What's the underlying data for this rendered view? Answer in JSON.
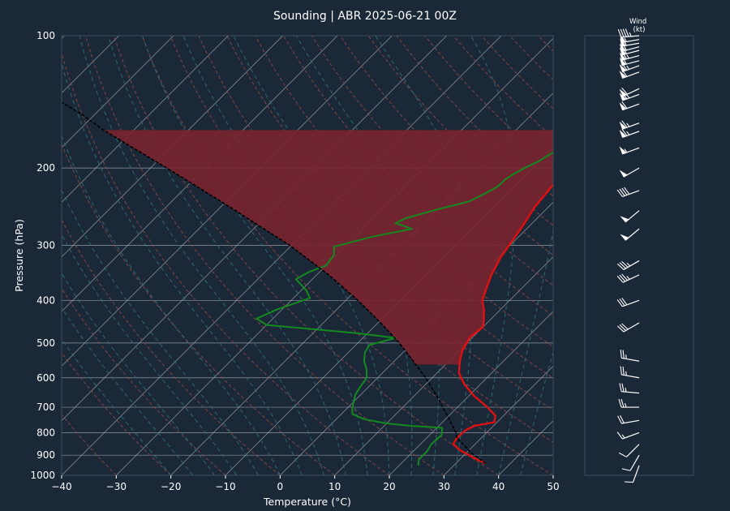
{
  "chart_data": [
    {
      "type": "line",
      "subtype": "skew-t log-p",
      "title": "Sounding | ABR 2025-06-21 00Z",
      "xlabel": "Temperature (°C)",
      "ylabel": "Pressure (hPa)",
      "xlim": [
        -40,
        50
      ],
      "ylim": [
        1000,
        100
      ],
      "yscale": "log",
      "x_ticks": [
        -40,
        -30,
        -20,
        -10,
        0,
        10,
        20,
        30,
        40,
        50
      ],
      "y_ticks": [
        100,
        200,
        300,
        400,
        500,
        600,
        700,
        800,
        900,
        1000
      ],
      "grid": true,
      "colors": {
        "temperature": "#e01010",
        "dewpoint": "#138a1e",
        "parcel": "#000000",
        "cape_fill": "#7a2430",
        "isotherm": "#b9bec6",
        "dry_adiabat": "#8a4a44",
        "moist_adiabat": "#2f6b73"
      },
      "series": [
        {
          "key": "temperature",
          "points": [
            [
              35.5,
              940
            ],
            [
              32,
              910
            ],
            [
              28.5,
              878
            ],
            [
              26,
              850
            ],
            [
              25.5,
              822
            ],
            [
              25.7,
              790
            ],
            [
              26.5,
              772
            ],
            [
              29.5,
              757
            ],
            [
              28.5,
              732
            ],
            [
              25.5,
              700
            ],
            [
              21,
              660
            ],
            [
              17,
              620
            ],
            [
              14,
              585
            ],
            [
              12,
              550
            ],
            [
              10.5,
              520
            ],
            [
              9.5,
              485
            ],
            [
              10,
              460
            ],
            [
              9,
              445
            ],
            [
              7,
              420
            ],
            [
              5,
              400
            ],
            [
              3.5,
              375
            ],
            [
              2,
              350
            ],
            [
              0.5,
              320
            ],
            [
              -0.5,
              290
            ],
            [
              -1.5,
              265
            ],
            [
              -2.5,
              245
            ],
            [
              -3,
              225
            ],
            [
              -3.5,
              210
            ],
            [
              -3.5,
              197
            ],
            [
              -2.5,
              192
            ],
            [
              -1,
              188
            ],
            [
              0,
              180
            ],
            [
              1,
              172
            ],
            [
              2,
              167
            ],
            [
              3,
              161
            ],
            [
              3.5,
              157
            ],
            [
              4,
              150
            ],
            [
              3.5,
              140
            ],
            [
              2.5,
              128
            ],
            [
              1.5,
              117
            ],
            [
              1,
              108
            ],
            [
              2.5,
              100
            ]
          ]
        },
        {
          "key": "dewpoint",
          "points": [
            [
              23.5,
              950
            ],
            [
              22.5,
              920
            ],
            [
              22.5,
              880
            ],
            [
              22,
              850
            ],
            [
              22.2,
              810
            ],
            [
              21,
              780
            ],
            [
              15,
              772
            ],
            [
              10,
              762
            ],
            [
              5,
              745
            ],
            [
              2,
              725
            ],
            [
              1,
              705
            ],
            [
              0,
              680
            ],
            [
              -1,
              655
            ],
            [
              -1.5,
              630
            ],
            [
              -2,
              600
            ],
            [
              -3.5,
              575
            ],
            [
              -5.5,
              550
            ],
            [
              -7,
              525
            ],
            [
              -7.5,
              505
            ],
            [
              -4,
              487
            ],
            [
              -12,
              475
            ],
            [
              -30,
              455
            ],
            [
              -33,
              440
            ],
            [
              -31,
              420
            ],
            [
              -27,
              395
            ],
            [
              -29,
              380
            ],
            [
              -33,
              358
            ],
            [
              -32,
              345
            ],
            [
              -30,
              333
            ],
            [
              -30.5,
              315
            ],
            [
              -32,
              302
            ],
            [
              -27,
              287
            ],
            [
              -21,
              275
            ],
            [
              -25,
              267
            ],
            [
              -24,
              260
            ],
            [
              -20.5,
              250
            ],
            [
              -15.5,
              238
            ],
            [
              -14,
              228
            ],
            [
              -13,
              220
            ],
            [
              -13,
              213
            ],
            [
              -12.5,
              207
            ],
            [
              -11.5,
              200
            ],
            [
              -10,
              192
            ],
            [
              -9,
              183
            ],
            [
              -8.5,
              175
            ],
            [
              -7.5,
              167
            ],
            [
              -7,
              160
            ],
            [
              -6,
              153
            ],
            [
              -7,
              145
            ],
            [
              -7.5,
              138
            ],
            [
              -9.5,
              127
            ],
            [
              -12,
              118
            ],
            [
              -13.5,
              110
            ],
            [
              -12,
              104
            ],
            [
              -10.5,
              100
            ]
          ]
        },
        {
          "key": "parcel",
          "points": [
            [
              35.5,
              940
            ],
            [
              31,
              890
            ],
            [
              27,
              840
            ],
            [
              25.5,
              822
            ],
            [
              24.4,
              800
            ],
            [
              21.0,
              750
            ],
            [
              17.3,
              700
            ],
            [
              13.3,
              650
            ],
            [
              8.8,
              600
            ],
            [
              3.5,
              550
            ],
            [
              -2.4,
              500
            ],
            [
              -9.5,
              450
            ],
            [
              -17.8,
              400
            ],
            [
              -27.8,
              350
            ],
            [
              -40.3,
              300
            ],
            [
              -48.1,
              275
            ],
            [
              -56.6,
              250
            ],
            [
              -66.2,
              225
            ],
            [
              -77.0,
              200
            ],
            [
              -89.5,
              175
            ],
            [
              -96.0,
              163
            ],
            [
              -103.0,
              150
            ],
            [
              -120.3,
              125
            ],
            [
              -142.5,
              100
            ]
          ]
        }
      ],
      "wind_barbs": {
        "label": "Wind\n(kt)",
        "levels": [
          {
            "p": 950,
            "dir": 200,
            "kt": 10
          },
          {
            "p": 900,
            "dir": 210,
            "kt": 10
          },
          {
            "p": 850,
            "dir": 225,
            "kt": 10
          },
          {
            "p": 800,
            "dir": 250,
            "kt": 15
          },
          {
            "p": 750,
            "dir": 260,
            "kt": 20
          },
          {
            "p": 700,
            "dir": 270,
            "kt": 25
          },
          {
            "p": 650,
            "dir": 275,
            "kt": 25
          },
          {
            "p": 600,
            "dir": 280,
            "kt": 25
          },
          {
            "p": 550,
            "dir": 280,
            "kt": 25
          },
          {
            "p": 450,
            "dir": 240,
            "kt": 30
          },
          {
            "p": 400,
            "dir": 250,
            "kt": 30
          },
          {
            "p": 350,
            "dir": 245,
            "kt": 35
          },
          {
            "p": 325,
            "dir": 240,
            "kt": 35
          },
          {
            "p": 275,
            "dir": 230,
            "kt": 50
          },
          {
            "p": 250,
            "dir": 230,
            "kt": 50
          },
          {
            "p": 225,
            "dir": 250,
            "kt": 40
          },
          {
            "p": 200,
            "dir": 240,
            "kt": 50
          },
          {
            "p": 180,
            "dir": 250,
            "kt": 55
          },
          {
            "p": 165,
            "dir": 250,
            "kt": 65
          },
          {
            "p": 158,
            "dir": 250,
            "kt": 65
          },
          {
            "p": 143,
            "dir": 250,
            "kt": 60
          },
          {
            "p": 136,
            "dir": 250,
            "kt": 65
          },
          {
            "p": 132,
            "dir": 245,
            "kt": 60
          },
          {
            "p": 121,
            "dir": 250,
            "kt": 60
          },
          {
            "p": 117,
            "dir": 250,
            "kt": 65
          },
          {
            "p": 114,
            "dir": 255,
            "kt": 60
          },
          {
            "p": 111,
            "dir": 255,
            "kt": 65
          },
          {
            "p": 108,
            "dir": 255,
            "kt": 60
          },
          {
            "p": 106,
            "dir": 255,
            "kt": 60
          },
          {
            "p": 104,
            "dir": 260,
            "kt": 60
          },
          {
            "p": 102,
            "dir": 260,
            "kt": 55
          },
          {
            "p": 100,
            "dir": 265,
            "kt": 45
          }
        ]
      }
    }
  ]
}
